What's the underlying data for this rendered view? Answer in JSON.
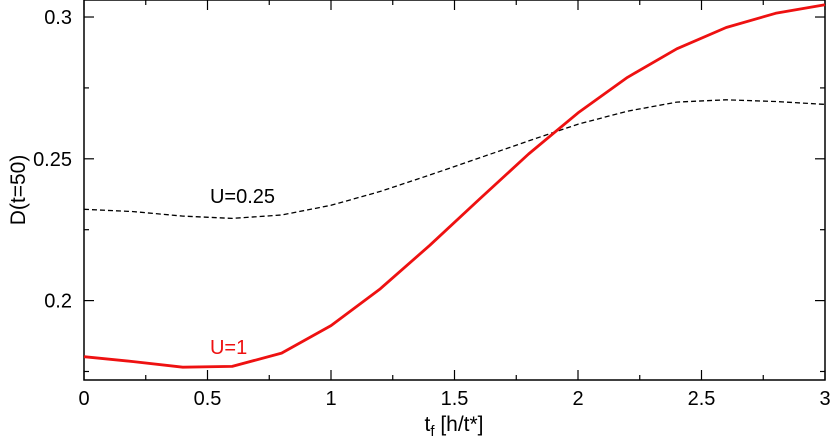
{
  "chart_data": {
    "type": "line",
    "title": "",
    "xlabel": "t",
    "xlabel_subscript": "f",
    "xlabel_units": " [h/t*]",
    "ylabel": "D(t=50)",
    "xlim": [
      0,
      3
    ],
    "ylim": [
      0.172,
      0.306
    ],
    "x_ticks": [
      0,
      0.5,
      1,
      1.5,
      2,
      2.5,
      3
    ],
    "x_tick_labels": [
      "0",
      "0.5",
      "1",
      "1.5",
      "2",
      "2.5",
      "3"
    ],
    "y_ticks": [
      0.2,
      0.25,
      0.3
    ],
    "y_tick_labels": [
      "0.2",
      "0.25",
      "0.3"
    ],
    "grid": false,
    "legend": "none",
    "series": [
      {
        "name": "U=0.25",
        "color": "#000000",
        "style": "dashed",
        "x": [
          0,
          0.2,
          0.4,
          0.6,
          0.8,
          1.0,
          1.2,
          1.4,
          1.6,
          1.8,
          2.0,
          2.2,
          2.4,
          2.6,
          2.8,
          3.0
        ],
        "y": [
          0.2322,
          0.2314,
          0.2298,
          0.229,
          0.2302,
          0.2336,
          0.2385,
          0.2443,
          0.2503,
          0.2563,
          0.2622,
          0.2668,
          0.27,
          0.2708,
          0.2702,
          0.2692
        ]
      },
      {
        "name": "U=1",
        "color": "#ee1111",
        "style": "solid",
        "x": [
          0,
          0.2,
          0.4,
          0.6,
          0.8,
          1.0,
          1.2,
          1.4,
          1.6,
          1.8,
          2.0,
          2.2,
          2.4,
          2.6,
          2.8,
          3.0
        ],
        "y": [
          0.1802,
          0.1785,
          0.1765,
          0.1768,
          0.1815,
          0.1912,
          0.2042,
          0.2195,
          0.2357,
          0.2517,
          0.2662,
          0.2787,
          0.2888,
          0.2963,
          0.3013,
          0.3043
        ]
      }
    ],
    "annotations": [
      {
        "text": "U=0.25",
        "x": 0.51,
        "y": 0.2345,
        "color": "#000000"
      },
      {
        "text": "U=1",
        "x": 0.51,
        "y": 0.1812,
        "color": "#ee1111"
      }
    ]
  }
}
